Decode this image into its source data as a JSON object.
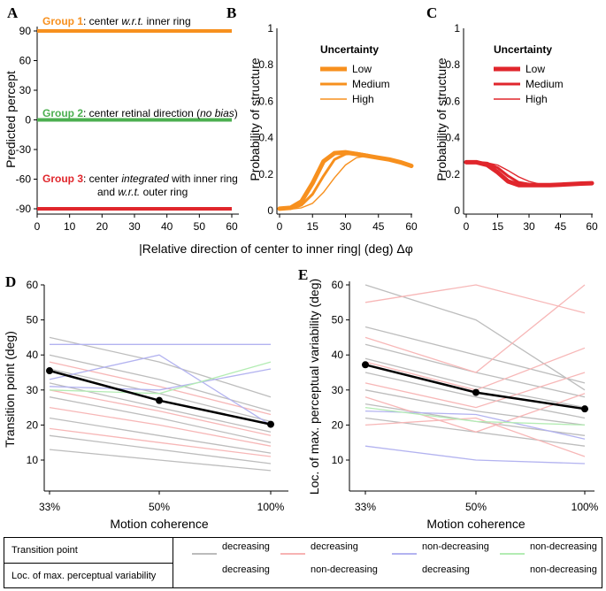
{
  "panel_labels": {
    "a": "A",
    "b": "B",
    "c": "C",
    "d": "D",
    "e": "E"
  },
  "shared_xlabel": "|Relative direction of center to inner ring| (deg) Δφ",
  "panel_a": {
    "ylabel": "Predicted percept",
    "yticks": [
      "90",
      "60",
      "30",
      "0",
      "-30",
      "-60",
      "-90"
    ],
    "xticks": [
      "0",
      "10",
      "20",
      "30",
      "40",
      "50",
      "60"
    ],
    "group1": {
      "bold": "Group 1",
      "text1": ": center ",
      "italic": "w.r.t.",
      "text2": " inner ring",
      "color": "#f7901e"
    },
    "group2": {
      "bold": "Group 2",
      "text1": ": center retinal direction (",
      "italic": "no bias",
      "text2": ")",
      "color": "#4caf50"
    },
    "group3": {
      "bold": "Group 3",
      "text1": ": center ",
      "italic": "integrated",
      "text2": " with inner ring",
      "line2a": "and ",
      "line2italic": "w.r.t.",
      "line2b": " outer ring",
      "color": "#e0262c"
    }
  },
  "panel_b": {
    "ylabel": "Probability of structure",
    "yticks": [
      "1",
      "0.8",
      "0.6",
      "0.4",
      "0.2",
      "0"
    ],
    "xticks": [
      "0",
      "15",
      "30",
      "45",
      "60"
    ],
    "legend_title": "Uncertainty",
    "legend": [
      "Low",
      "Medium",
      "High"
    ],
    "color": "#f7901e"
  },
  "panel_c": {
    "ylabel": "Probability of structure",
    "yticks": [
      "1",
      "0.8",
      "0.6",
      "0.4",
      "0.2",
      "0"
    ],
    "xticks": [
      "0",
      "15",
      "30",
      "45",
      "60"
    ],
    "legend_title": "Uncertainty",
    "legend": [
      "Low",
      "Medium",
      "High"
    ],
    "color": "#e0262c"
  },
  "panel_d": {
    "ylabel": "Transition point (deg)",
    "xlabel": "Motion coherence",
    "yticks": [
      "60",
      "50",
      "40",
      "30",
      "20",
      "10"
    ],
    "xticks": [
      "33%",
      "50%",
      "100%"
    ]
  },
  "panel_e": {
    "ylabel": "Loc. of max. perceptual variability (deg)",
    "xlabel": "Motion coherence",
    "yticks": [
      "60",
      "50",
      "40",
      "30",
      "20",
      "10"
    ],
    "xticks": [
      "33%",
      "50%",
      "100%"
    ]
  },
  "legend_table": {
    "row1": "Transition point",
    "row2": "Loc. of max. perceptual variability",
    "items": [
      {
        "top": "decreasing",
        "bottom": "decreasing",
        "color": "#bbbbbb"
      },
      {
        "top": "decreasing",
        "bottom": "non-decreasing",
        "color": "#f7b3b3"
      },
      {
        "top": "non-decreasing",
        "bottom": "decreasing",
        "color": "#b3b3f0"
      },
      {
        "top": "non-decreasing",
        "bottom": "non-decreasing",
        "color": "#b3ecb3"
      }
    ]
  },
  "chart_data": [
    {
      "type": "line",
      "panel": "A",
      "title": "",
      "xlabel": "|Relative direction of center to inner ring| (deg) Δφ",
      "ylabel": "Predicted percept",
      "xlim": [
        0,
        60
      ],
      "ylim": [
        -90,
        90
      ],
      "series": [
        {
          "name": "Group 1",
          "x": [
            0,
            60
          ],
          "values": [
            90,
            90
          ],
          "color": "#f7901e"
        },
        {
          "name": "Group 2",
          "x": [
            0,
            60
          ],
          "values": [
            0,
            0
          ],
          "color": "#4caf50"
        },
        {
          "name": "Group 3",
          "x": [
            0,
            60
          ],
          "values": [
            -90,
            -90
          ],
          "color": "#e0262c"
        }
      ]
    },
    {
      "type": "line",
      "panel": "B",
      "xlabel": "|Relative direction of center to inner ring| (deg) Δφ",
      "ylabel": "Probability of structure",
      "xlim": [
        0,
        60
      ],
      "ylim": [
        0,
        1
      ],
      "x": [
        0,
        5,
        10,
        15,
        20,
        25,
        30,
        35,
        40,
        45,
        50,
        55,
        60
      ],
      "series": [
        {
          "name": "Low",
          "values": [
            0.01,
            0.015,
            0.05,
            0.15,
            0.27,
            0.315,
            0.32,
            0.31,
            0.3,
            0.29,
            0.28,
            0.265,
            0.245
          ]
        },
        {
          "name": "Medium",
          "values": [
            0.01,
            0.01,
            0.03,
            0.09,
            0.19,
            0.28,
            0.31,
            0.315,
            0.305,
            0.29,
            0.28,
            0.265,
            0.245
          ]
        },
        {
          "name": "High",
          "values": [
            0.005,
            0.008,
            0.015,
            0.04,
            0.1,
            0.18,
            0.25,
            0.29,
            0.3,
            0.295,
            0.28,
            0.265,
            0.245
          ]
        }
      ]
    },
    {
      "type": "line",
      "panel": "C",
      "xlabel": "|Relative direction of center to inner ring| (deg) Δφ",
      "ylabel": "Probability of structure",
      "xlim": [
        0,
        60
      ],
      "ylim": [
        0,
        1
      ],
      "x": [
        0,
        5,
        10,
        15,
        20,
        25,
        30,
        35,
        40,
        45,
        50,
        55,
        60
      ],
      "series": [
        {
          "name": "Low",
          "values": [
            0.265,
            0.265,
            0.25,
            0.21,
            0.16,
            0.14,
            0.14,
            0.14,
            0.14,
            0.142,
            0.145,
            0.148,
            0.15
          ]
        },
        {
          "name": "Medium",
          "values": [
            0.265,
            0.265,
            0.26,
            0.235,
            0.19,
            0.155,
            0.145,
            0.14,
            0.14,
            0.142,
            0.145,
            0.148,
            0.15
          ]
        },
        {
          "name": "High",
          "values": [
            0.265,
            0.265,
            0.262,
            0.25,
            0.22,
            0.185,
            0.16,
            0.145,
            0.14,
            0.142,
            0.145,
            0.148,
            0.15
          ]
        }
      ]
    },
    {
      "type": "line",
      "panel": "D",
      "xlabel": "Motion coherence",
      "ylabel": "Transition point (deg)",
      "categories": [
        "33%",
        "50%",
        "100%"
      ],
      "ylim": [
        5,
        60
      ],
      "series": [
        {
          "name": "mean",
          "values": [
            35.5,
            27,
            20.2
          ]
        },
        {
          "name": "decreasing/decreasing",
          "values": [
            45,
            38,
            28
          ]
        },
        {
          "name": "decreasing/decreasing",
          "values": [
            40,
            33,
            24
          ]
        },
        {
          "name": "decreasing/decreasing",
          "values": [
            36,
            29,
            21
          ]
        },
        {
          "name": "decreasing/decreasing",
          "values": [
            32,
            25,
            18
          ]
        },
        {
          "name": "decreasing/decreasing",
          "values": [
            28,
            22,
            15
          ]
        },
        {
          "name": "decreasing/decreasing",
          "values": [
            22,
            17,
            12
          ]
        },
        {
          "name": "decreasing/decreasing",
          "values": [
            17,
            13,
            9
          ]
        },
        {
          "name": "decreasing/decreasing",
          "values": [
            13,
            10,
            7
          ]
        },
        {
          "name": "decreasing/non-decreasing",
          "values": [
            38,
            31,
            23
          ]
        },
        {
          "name": "decreasing/non-decreasing",
          "values": [
            30,
            24,
            17
          ]
        },
        {
          "name": "decreasing/non-decreasing",
          "values": [
            25,
            20,
            14
          ]
        },
        {
          "name": "decreasing/non-decreasing",
          "values": [
            19,
            15,
            11
          ]
        },
        {
          "name": "non-decreasing/decreasing",
          "values": [
            43,
            43,
            43
          ]
        },
        {
          "name": "non-decreasing/decreasing",
          "values": [
            33,
            40,
            20
          ]
        },
        {
          "name": "non-decreasing/decreasing",
          "values": [
            31,
            30,
            36
          ]
        },
        {
          "name": "non-decreasing/non-decreasing",
          "values": [
            30,
            29,
            38
          ]
        }
      ]
    },
    {
      "type": "line",
      "panel": "E",
      "xlabel": "Motion coherence",
      "ylabel": "Loc. of max. perceptual variability (deg)",
      "categories": [
        "33%",
        "50%",
        "100%"
      ],
      "ylim": [
        5,
        60
      ],
      "series": [
        {
          "name": "mean",
          "values": [
            37.2,
            29.3,
            24.6
          ]
        },
        {
          "name": "decreasing/decreasing",
          "values": [
            60,
            50,
            30
          ]
        },
        {
          "name": "decreasing/decreasing",
          "values": [
            48,
            40,
            32
          ]
        },
        {
          "name": "decreasing/decreasing",
          "values": [
            43,
            35,
            28
          ]
        },
        {
          "name": "decreasing/decreasing",
          "values": [
            39,
            31,
            25
          ]
        },
        {
          "name": "decreasing/decreasing",
          "values": [
            35,
            28,
            22
          ]
        },
        {
          "name": "decreasing/decreasing",
          "values": [
            30,
            24,
            20
          ]
        },
        {
          "name": "decreasing/decreasing",
          "values": [
            26,
            21,
            17
          ]
        },
        {
          "name": "decreasing/decreasing",
          "values": [
            22,
            18,
            14
          ]
        },
        {
          "name": "decreasing/non-decreasing",
          "values": [
            55,
            60,
            52
          ]
        },
        {
          "name": "decreasing/non-decreasing",
          "values": [
            45,
            35,
            60
          ]
        },
        {
          "name": "decreasing/non-decreasing",
          "values": [
            38,
            30,
            42
          ]
        },
        {
          "name": "decreasing/non-decreasing",
          "values": [
            32,
            25,
            35
          ]
        },
        {
          "name": "decreasing/non-decreasing",
          "values": [
            28,
            18,
            29
          ]
        },
        {
          "name": "decreasing/non-decreasing",
          "values": [
            20,
            22,
            11
          ]
        },
        {
          "name": "non-decreasing/decreasing",
          "values": [
            14,
            10,
            9
          ]
        },
        {
          "name": "non-decreasing/decreasing",
          "values": [
            24,
            23,
            16
          ]
        },
        {
          "name": "non-decreasing/non-decreasing",
          "values": [
            25,
            21,
            20
          ]
        }
      ]
    }
  ]
}
